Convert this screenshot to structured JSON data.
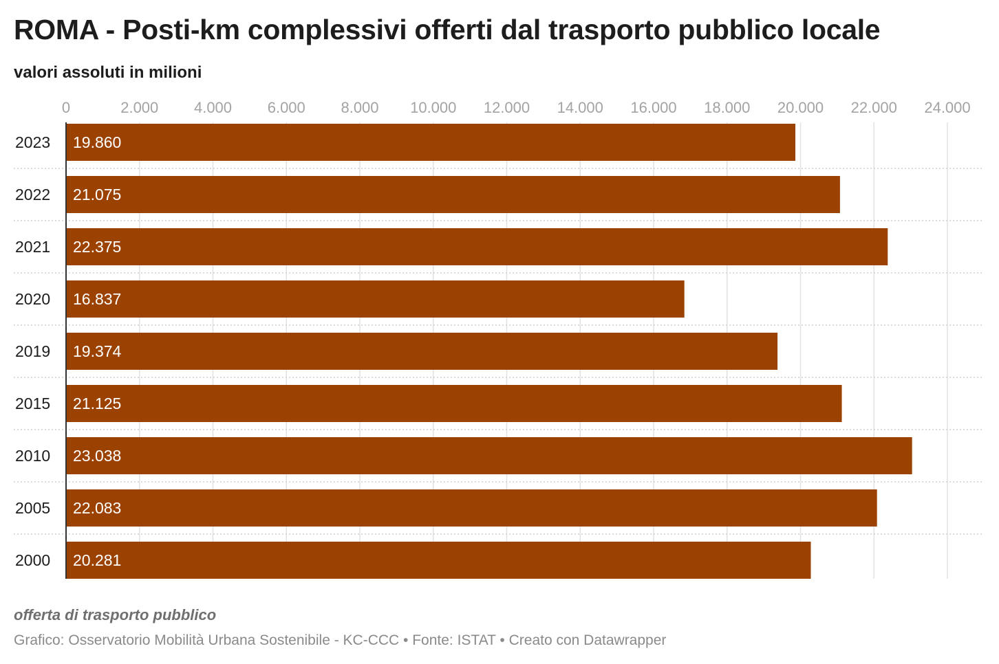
{
  "header": {
    "title": "ROMA - Posti-km complessivi offerti dal trasporto pubblico locale",
    "subtitle": "valori assoluti in milioni"
  },
  "footer": {
    "note": "offerta di trasporto pubblico",
    "credits": "Grafico: Osservatorio Mobilità Urbana Sostenibile - KC-CCC • Fonte: ISTAT • Creato con Datawrapper"
  },
  "colors": {
    "bar": "#9c4200",
    "bar_label": "#ffffff",
    "grid": "#e2e2e2",
    "row_separator": "#cfcfcf",
    "axis_line": "#333333",
    "tick_label": "#a3a3a3",
    "category_label": "#1d1d1d"
  },
  "chart_data": {
    "type": "bar",
    "orientation": "horizontal",
    "title": "ROMA - Posti-km complessivi offerti dal trasporto pubblico locale",
    "subtitle": "valori assoluti in milioni",
    "categories": [
      "2023",
      "2022",
      "2021",
      "2020",
      "2019",
      "2015",
      "2010",
      "2005",
      "2000"
    ],
    "values": [
      19860,
      21075,
      22375,
      16837,
      19374,
      21125,
      23038,
      22083,
      20281
    ],
    "value_labels": [
      "19.860",
      "21.075",
      "22.375",
      "16.837",
      "19.374",
      "21.125",
      "23.038",
      "22.083",
      "20.281"
    ],
    "xlim": [
      0,
      24000
    ],
    "xticks": [
      0,
      2000,
      4000,
      6000,
      8000,
      10000,
      12000,
      14000,
      16000,
      18000,
      20000,
      22000,
      24000
    ],
    "xtick_labels": [
      "0",
      "2.000",
      "4.000",
      "6.000",
      "8.000",
      "10.000",
      "12.000",
      "14.000",
      "16.000",
      "18.000",
      "20.000",
      "22.000",
      "24.000"
    ],
    "xaxis_position": "top",
    "grid": true,
    "legend": "none"
  }
}
